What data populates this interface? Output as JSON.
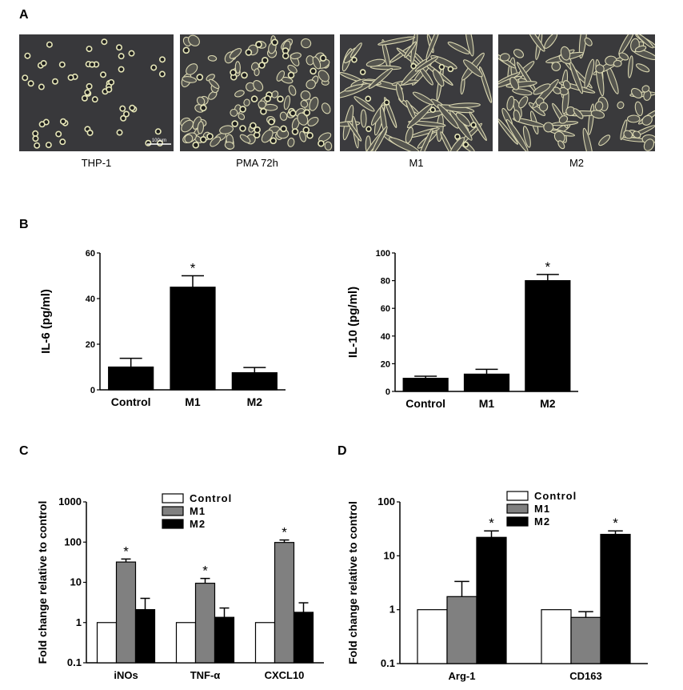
{
  "panels": {
    "a": "A",
    "b": "B",
    "c": "C",
    "d": "D"
  },
  "micrographs": [
    {
      "label": "THP-1",
      "scale_bar": "100um"
    },
    {
      "label": "PMA 72h"
    },
    {
      "label": "M1"
    },
    {
      "label": "M2"
    }
  ],
  "significance_marker": "*",
  "chart_data": [
    {
      "type": "bar",
      "categories": [
        "Control",
        "M1",
        "M2"
      ],
      "values": [
        10,
        45,
        7.5
      ],
      "errors": [
        3.8,
        5,
        2.3
      ],
      "significant": [
        false,
        true,
        false
      ],
      "ylabel": "IL-6 (pg/ml)",
      "ylim": [
        0,
        60
      ],
      "yticks": [
        0,
        20,
        40,
        60
      ],
      "color": "#000000"
    },
    {
      "type": "bar",
      "categories": [
        "Control",
        "M1",
        "M2"
      ],
      "values": [
        9.5,
        12.5,
        80
      ],
      "errors": [
        1.5,
        3.5,
        4.5
      ],
      "significant": [
        false,
        false,
        true
      ],
      "ylabel": "IL-10 (pg/ml)",
      "ylim": [
        0,
        100
      ],
      "yticks": [
        0,
        20,
        40,
        60,
        80,
        100
      ],
      "color": "#000000"
    },
    {
      "type": "bar",
      "yscale": "log",
      "categories": [
        "iNOs",
        "TNF-α",
        "CXCL10"
      ],
      "series": [
        {
          "name": "Control",
          "values": [
            1,
            1,
            1
          ],
          "errors": [
            0,
            0,
            0
          ],
          "color": "#ffffff"
        },
        {
          "name": "M1",
          "values": [
            32,
            9.5,
            98
          ],
          "errors": [
            6,
            3,
            15
          ],
          "color": "#808080"
        },
        {
          "name": "M2",
          "values": [
            2.1,
            1.35,
            1.8
          ],
          "errors": [
            1.9,
            0.95,
            1.3
          ],
          "color": "#000000"
        }
      ],
      "significant_series": "M1",
      "ylabel": "Fold change relative to control",
      "ylim": [
        0.1,
        1000
      ],
      "yticks": [
        0.1,
        1,
        10,
        100,
        1000
      ],
      "ytick_labels": [
        "0.1",
        "1",
        "10",
        "100",
        "1000"
      ],
      "legend": "top-right"
    },
    {
      "type": "bar",
      "yscale": "log",
      "categories": [
        "Arg-1",
        "CD163"
      ],
      "series": [
        {
          "name": "Control",
          "values": [
            1,
            1
          ],
          "errors": [
            0,
            0
          ],
          "color": "#ffffff"
        },
        {
          "name": "M1",
          "values": [
            1.75,
            0.72
          ],
          "errors": [
            1.6,
            0.2
          ],
          "color": "#808080"
        },
        {
          "name": "M2",
          "values": [
            22,
            25
          ],
          "errors": [
            7,
            4
          ],
          "color": "#000000"
        }
      ],
      "significant_series": "M2",
      "ylabel": "Fold change relative to control",
      "ylim": [
        0.1,
        100
      ],
      "yticks": [
        0.1,
        1,
        10,
        100
      ],
      "ytick_labels": [
        "0.1",
        "1",
        "10",
        "100"
      ],
      "legend": "top-right"
    }
  ]
}
